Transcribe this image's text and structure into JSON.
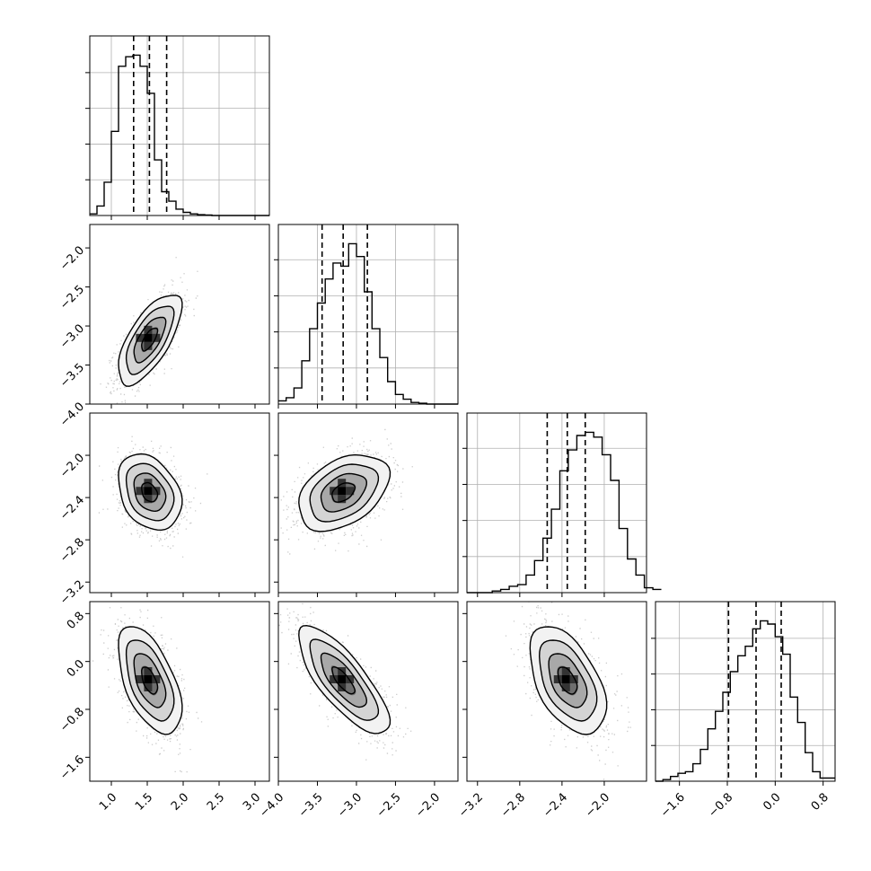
{
  "chart_data": {
    "type": "corner",
    "title": "",
    "grid": true,
    "parameters": [
      {
        "index": 0,
        "range": [
          0.7,
          3.2
        ],
        "ticks": [
          1.0,
          1.5,
          2.0,
          2.5,
          3.0
        ],
        "tick_labels": [
          "1.0",
          "1.5",
          "2.0",
          "2.5",
          "3.0"
        ],
        "quantiles": {
          "q16": 1.31,
          "q50": 1.53,
          "q84": 1.77
        },
        "histogram": {
          "bin_start": 0.7,
          "bin_width": 0.1,
          "counts": [
            1,
            6,
            21,
            53,
            94,
            100,
            101,
            94,
            77,
            35,
            15,
            9,
            4,
            2,
            1,
            0.5,
            0.3,
            0,
            0,
            0,
            0,
            0,
            0,
            0,
            0
          ]
        }
      },
      {
        "index": 1,
        "range": [
          -4.0,
          -1.7
        ],
        "ticks": [
          -4.0,
          -3.5,
          -3.0,
          -2.5,
          -2.0
        ],
        "tick_labels": [
          "−4.0",
          "−3.5",
          "−3.0",
          "−2.5",
          "−2.0"
        ],
        "quantiles": {
          "q16": -3.44,
          "q50": -3.17,
          "q84": -2.86
        },
        "histogram": {
          "bin_start": -4.0,
          "bin_width": 0.1,
          "counts": [
            2,
            4,
            10,
            27,
            47,
            63,
            78,
            88,
            86,
            100,
            92,
            70,
            47,
            29,
            14,
            6,
            3,
            1,
            0.5,
            0,
            0,
            0,
            0
          ]
        }
      },
      {
        "index": 2,
        "range": [
          -3.3,
          -1.6
        ],
        "ticks": [
          -3.2,
          -2.8,
          -2.4,
          -2.0
        ],
        "tick_labels": [
          "−3.2",
          "−2.8",
          "−2.4",
          "−2.0"
        ],
        "quantiles": {
          "q16": -2.54,
          "q50": -2.35,
          "q84": -2.18
        },
        "histogram": {
          "bin_start": -3.3,
          "bin_width": 0.08,
          "counts": [
            0,
            0,
            0,
            1,
            2,
            4,
            5,
            11,
            20,
            34,
            52,
            76,
            89,
            98,
            100,
            97,
            86,
            70,
            40,
            21,
            11,
            3,
            2
          ]
        }
      },
      {
        "index": 3,
        "range": [
          -2.0,
          1.0
        ],
        "ticks": [
          -1.6,
          -0.8,
          0.0,
          0.8
        ],
        "tick_labels": [
          "−1.6",
          "−0.8",
          "0.0",
          "0.8"
        ],
        "quantiles": {
          "q16": -0.78,
          "q50": -0.32,
          "q84": 0.1
        },
        "histogram": {
          "bin_start": -2.0,
          "bin_width": 0.125,
          "counts": [
            0,
            1,
            3,
            5,
            6,
            11,
            20,
            33,
            44,
            56,
            69,
            79,
            85,
            96,
            101,
            99,
            91,
            80,
            53,
            37,
            18,
            6,
            2,
            2
          ]
        }
      }
    ],
    "pairs": [
      {
        "x": 0,
        "y": 1,
        "mean": [
          1.53,
          -3.17
        ],
        "sd": [
          0.22,
          0.29
        ],
        "rho": 0.68
      },
      {
        "x": 0,
        "y": 2,
        "mean": [
          1.53,
          -2.35
        ],
        "sd": [
          0.22,
          0.18
        ],
        "rho": -0.3
      },
      {
        "x": 1,
        "y": 2,
        "mean": [
          -3.17,
          -2.35
        ],
        "sd": [
          0.29,
          0.18
        ],
        "rho": 0.4
      },
      {
        "x": 0,
        "y": 3,
        "mean": [
          1.53,
          -0.32
        ],
        "sd": [
          0.22,
          0.45
        ],
        "rho": -0.55
      },
      {
        "x": 1,
        "y": 3,
        "mean": [
          -3.17,
          -0.32
        ],
        "sd": [
          0.29,
          0.45
        ],
        "rho": -0.78
      },
      {
        "x": 2,
        "y": 3,
        "mean": [
          -2.35,
          -0.32
        ],
        "sd": [
          0.18,
          0.45
        ],
        "rho": -0.5
      }
    ],
    "colors": {
      "lines": "#000000",
      "points": "#8c8c8c",
      "grid": "#b0b0b0"
    }
  }
}
